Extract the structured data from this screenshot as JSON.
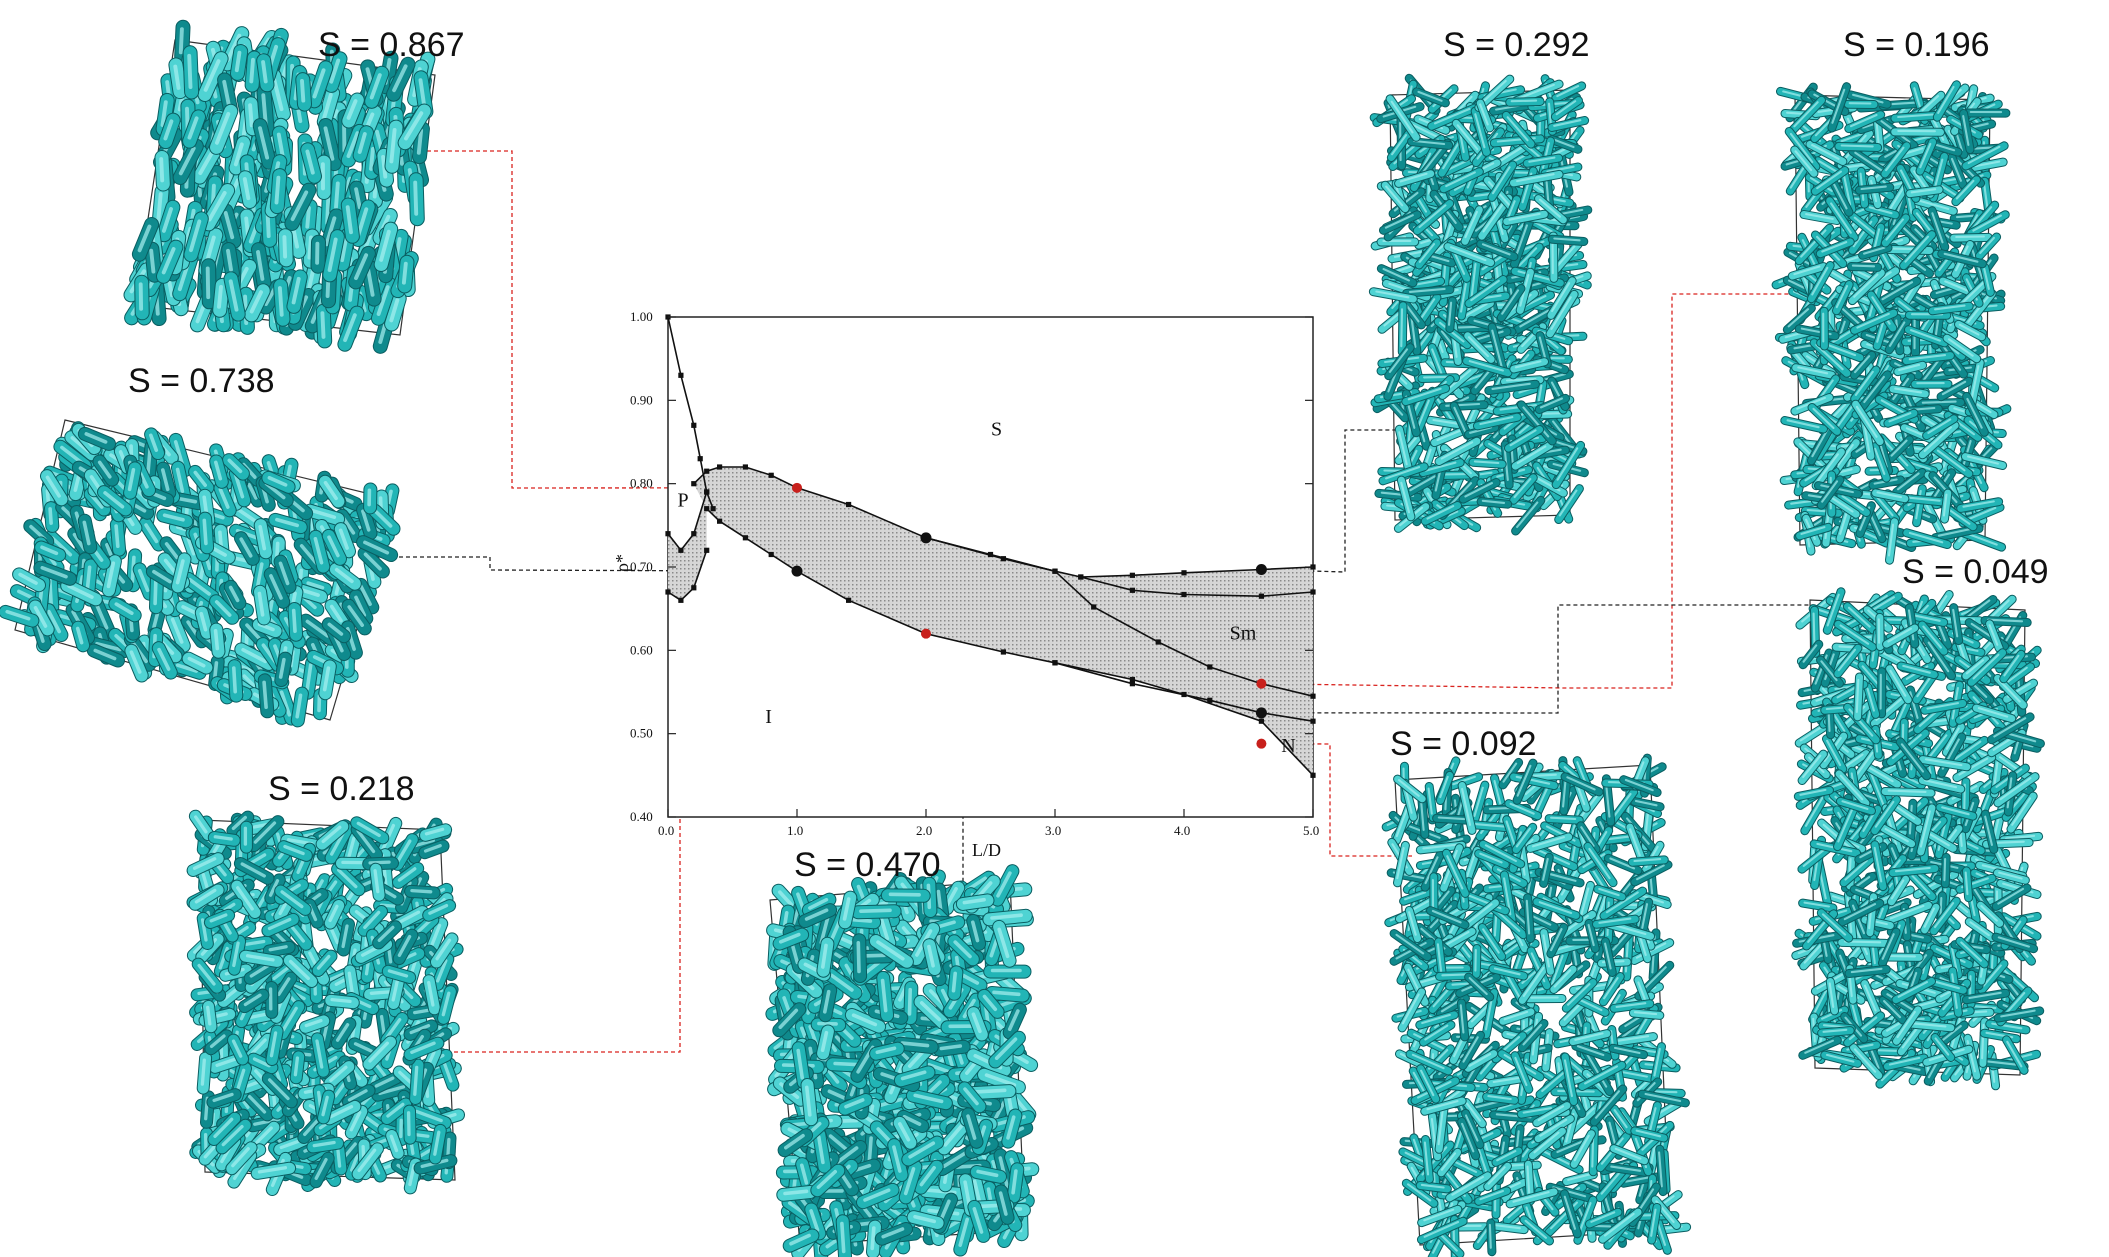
{
  "colors": {
    "rod": "#2bc0c0",
    "rod_light": "#7fe6e6",
    "rod_dark": "#0b6f73",
    "connector_red": "#d9231f",
    "connector_black": "#222222",
    "band_fill": "#cfcfcf",
    "point_red": "#c8201c"
  },
  "chart_data": {
    "type": "phase-diagram",
    "xlabel": "L/D",
    "ylabel": "ρ*",
    "xlim": [
      0,
      5
    ],
    "ylim": [
      0.4,
      1.0
    ],
    "xticks": [
      "0.0",
      "1.0",
      "2.0",
      "3.0",
      "4.0",
      "5.0"
    ],
    "yticks": [
      "1.00",
      "0.90",
      "0.80",
      "0.70",
      "0.60",
      "0.50",
      "0.40"
    ],
    "regions": [
      {
        "label": "S",
        "x": 2.55,
        "y": 0.865
      },
      {
        "label": "P",
        "x": 0.12,
        "y": 0.78
      },
      {
        "label": "Sm",
        "x": 4.4,
        "y": 0.62
      },
      {
        "label": "I",
        "x": 0.8,
        "y": 0.52
      },
      {
        "label": "N",
        "x": 4.8,
        "y": 0.485
      }
    ],
    "boundaries": [
      {
        "x": [
          0.0,
          0.1,
          0.2,
          0.25,
          0.3,
          0.35
        ],
        "y": [
          1.0,
          0.93,
          0.87,
          0.83,
          0.79,
          0.77
        ]
      },
      {
        "x": [
          0.0,
          0.1,
          0.2,
          0.3
        ],
        "y": [
          0.74,
          0.72,
          0.74,
          0.79
        ]
      },
      {
        "x": [
          0.0,
          0.1,
          0.2,
          0.3
        ],
        "y": [
          0.67,
          0.66,
          0.675,
          0.72
        ]
      },
      {
        "x": [
          0.2,
          0.3,
          0.4,
          0.6,
          0.8,
          1.0,
          1.4,
          2.0,
          2.6,
          3.0,
          3.2,
          3.6,
          4.0,
          4.6,
          5.0
        ],
        "y": [
          0.8,
          0.815,
          0.82,
          0.82,
          0.81,
          0.795,
          0.775,
          0.735,
          0.71,
          0.695,
          0.688,
          0.69,
          0.693,
          0.697,
          0.7
        ]
      },
      {
        "x": [
          0.3,
          0.4,
          0.6,
          0.8,
          1.0,
          1.4,
          2.0,
          2.6,
          3.0,
          3.6,
          4.0,
          4.6,
          5.0
        ],
        "y": [
          0.77,
          0.755,
          0.735,
          0.715,
          0.695,
          0.66,
          0.62,
          0.598,
          0.585,
          0.565,
          0.547,
          0.515,
          0.45
        ]
      },
      {
        "x": [
          2.0,
          2.5,
          3.0,
          3.3,
          3.8,
          4.2,
          4.6,
          5.0
        ],
        "y": [
          0.735,
          0.715,
          0.695,
          0.652,
          0.61,
          0.58,
          0.56,
          0.545
        ]
      },
      {
        "x": [
          3.2,
          3.6,
          4.0,
          4.6,
          5.0
        ],
        "y": [
          0.688,
          0.672,
          0.667,
          0.665,
          0.67
        ]
      },
      {
        "x": [
          3.0,
          3.6,
          4.2,
          4.6,
          5.0
        ],
        "y": [
          0.585,
          0.56,
          0.54,
          0.525,
          0.515
        ]
      }
    ],
    "markers_black": [
      {
        "x": 2.0,
        "y": 0.735
      },
      {
        "x": 1.0,
        "y": 0.695
      },
      {
        "x": 4.6,
        "y": 0.697
      },
      {
        "x": 4.6,
        "y": 0.525
      }
    ],
    "markers_red": [
      {
        "x": 1.0,
        "y": 0.795
      },
      {
        "x": 2.0,
        "y": 0.62
      },
      {
        "x": 4.6,
        "y": 0.56
      },
      {
        "x": 4.6,
        "y": 0.488
      }
    ]
  },
  "snapshots": [
    {
      "label": "S = 0.867",
      "order": 0.867
    },
    {
      "label": "S = 0.738",
      "order": 0.738
    },
    {
      "label": "S = 0.218",
      "order": 0.218
    },
    {
      "label": "S = 0.470",
      "order": 0.47
    },
    {
      "label": "S = 0.292",
      "order": 0.292
    },
    {
      "label": "S = 0.196",
      "order": 0.196
    },
    {
      "label": "S = 0.092",
      "order": 0.092
    },
    {
      "label": "S = 0.049",
      "order": 0.049
    }
  ]
}
